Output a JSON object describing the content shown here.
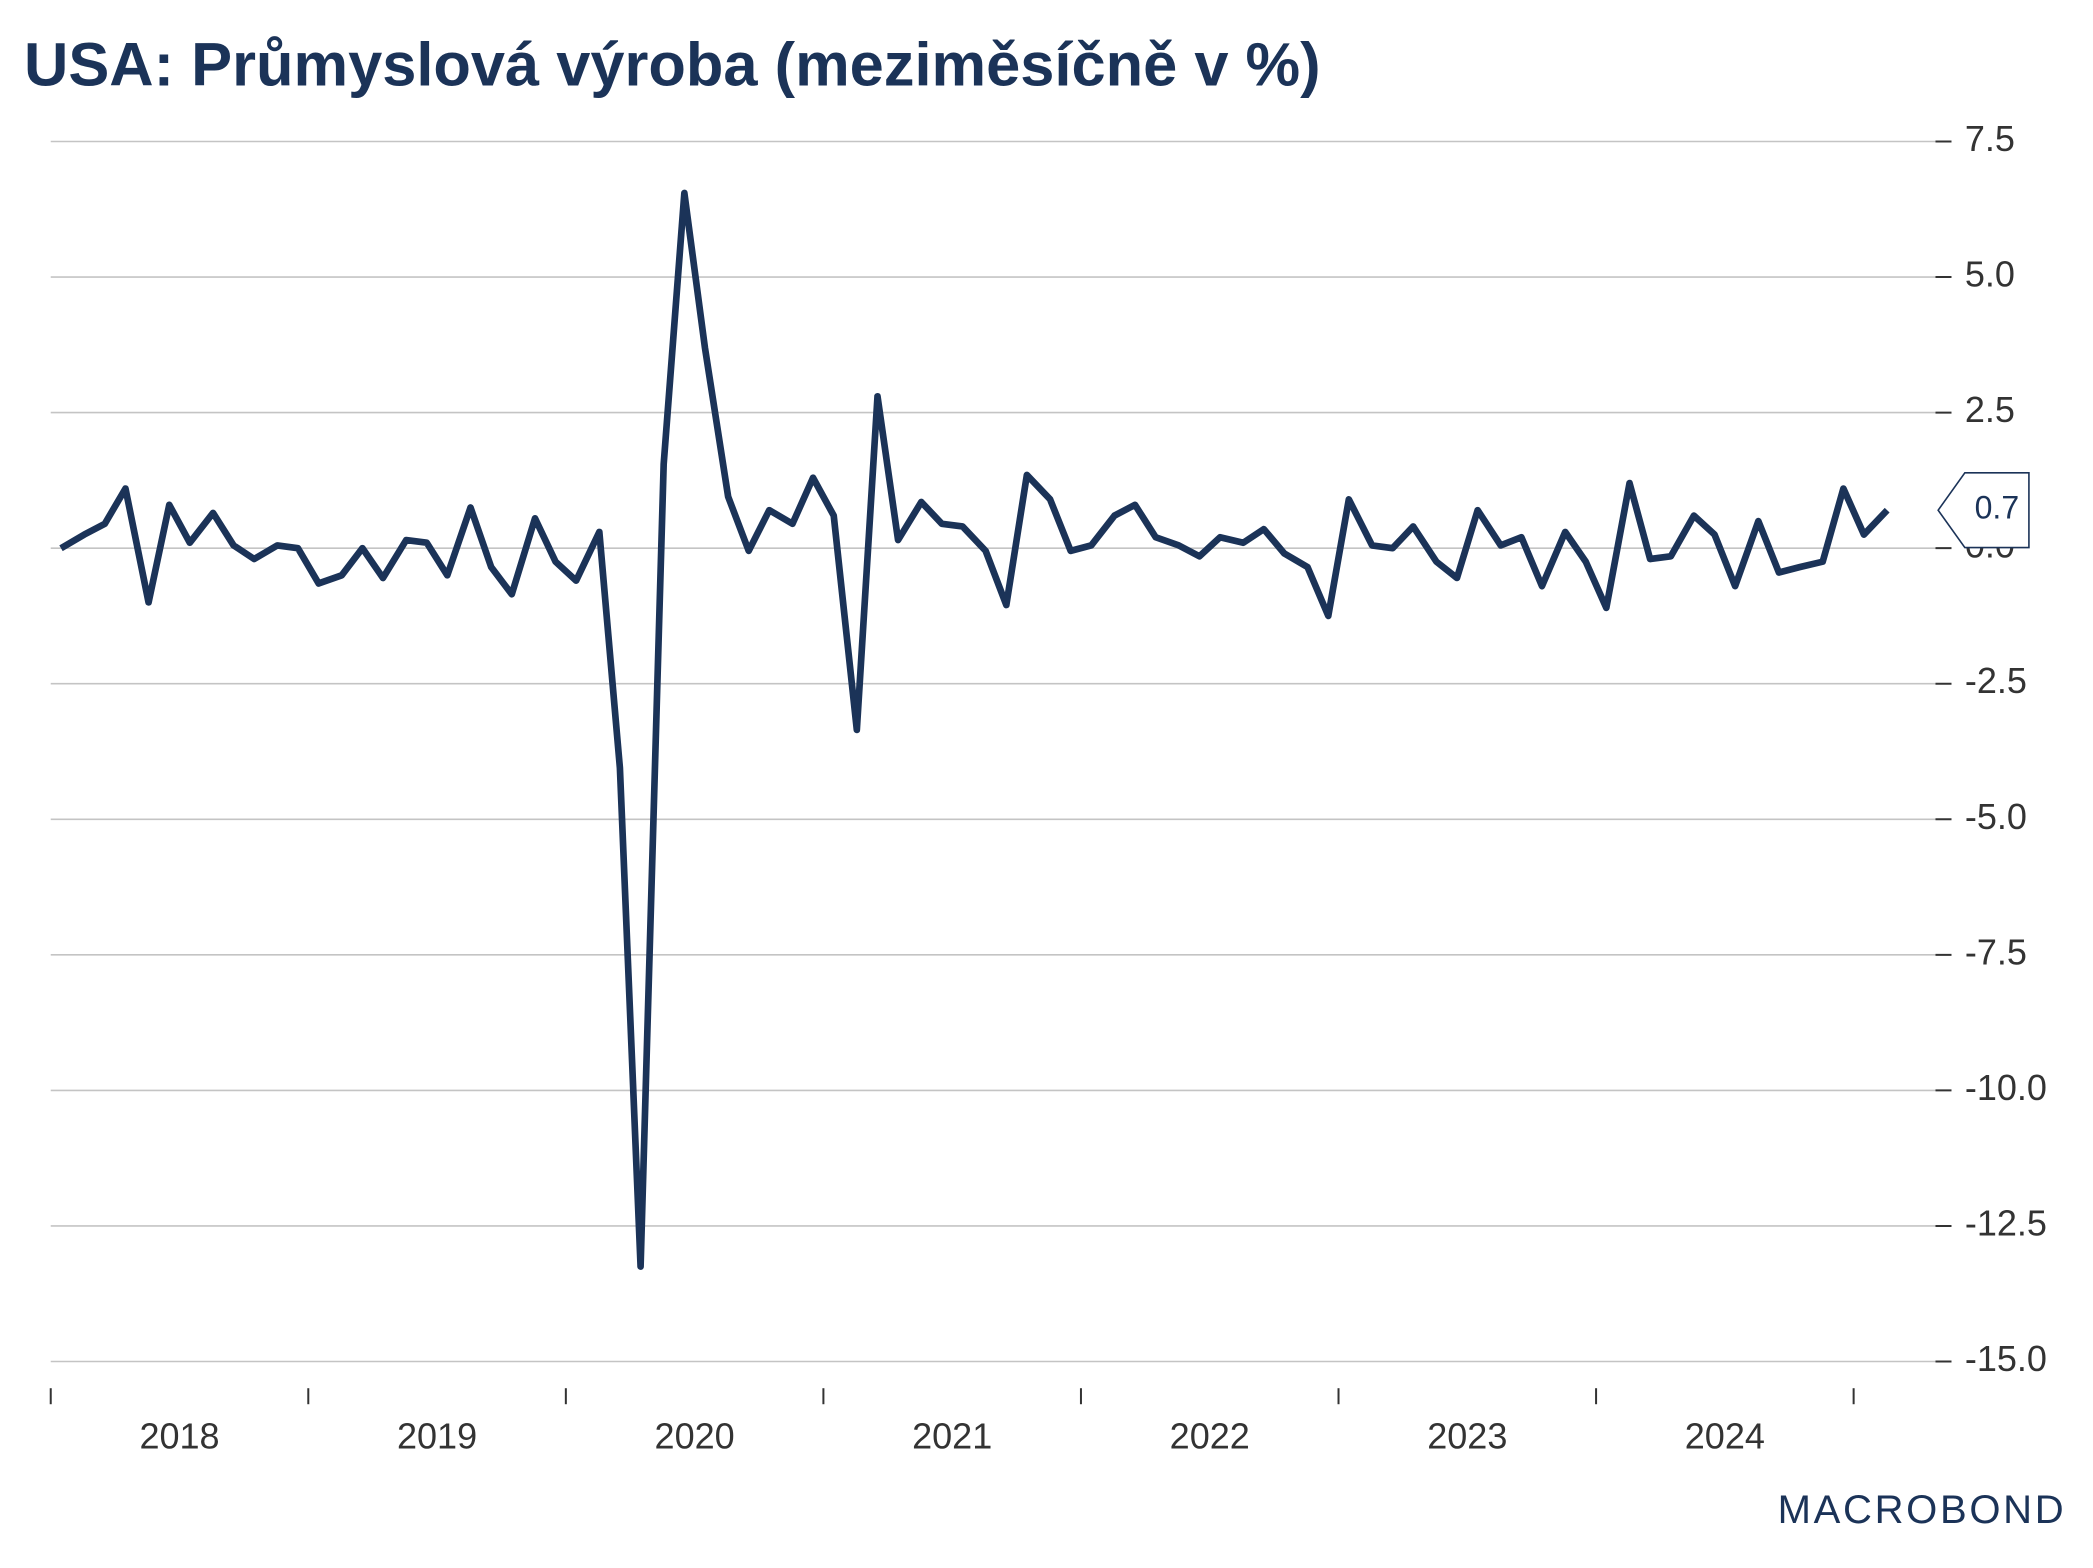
{
  "chart_data": {
    "type": "line",
    "title": "USA: Průmyslová výroba (meziměsíčně v %)",
    "logo": "MACROBOND",
    "x": [
      2018.04,
      2018.13,
      2018.21,
      2018.29,
      2018.38,
      2018.46,
      2018.54,
      2018.63,
      2018.71,
      2018.79,
      2018.88,
      2018.96,
      2019.04,
      2019.13,
      2019.21,
      2019.29,
      2019.38,
      2019.46,
      2019.54,
      2019.63,
      2019.71,
      2019.79,
      2019.88,
      2019.96,
      2020.04,
      2020.13,
      2020.21,
      2020.29,
      2020.38,
      2020.46,
      2020.54,
      2020.63,
      2020.71,
      2020.79,
      2020.88,
      2020.96,
      2021.04,
      2021.13,
      2021.21,
      2021.29,
      2021.38,
      2021.46,
      2021.54,
      2021.63,
      2021.71,
      2021.79,
      2021.88,
      2021.96,
      2022.04,
      2022.13,
      2022.21,
      2022.29,
      2022.38,
      2022.46,
      2022.54,
      2022.63,
      2022.71,
      2022.79,
      2022.88,
      2022.96,
      2023.04,
      2023.13,
      2023.21,
      2023.29,
      2023.38,
      2023.46,
      2023.54,
      2023.63,
      2023.71,
      2023.79,
      2023.88,
      2023.96,
      2024.04,
      2024.13,
      2024.21,
      2024.29,
      2024.38,
      2024.46,
      2024.54,
      2024.63,
      2024.71,
      2024.79,
      2024.88,
      2024.96,
      2025.04,
      2025.13
    ],
    "series": [
      {
        "name": "Průmyslová výroba",
        "color": "#1b3358",
        "values": [
          0.0,
          0.25,
          0.45,
          1.1,
          -1.0,
          0.8,
          0.1,
          0.65,
          0.05,
          -0.2,
          0.05,
          0.0,
          -0.65,
          -0.5,
          0.0,
          -0.55,
          0.15,
          0.1,
          -0.5,
          0.75,
          -0.35,
          -0.85,
          0.55,
          -0.25,
          -0.6,
          0.3,
          -4.05,
          -13.25,
          1.55,
          6.55,
          3.7,
          0.95,
          -0.05,
          0.7,
          0.45,
          1.3,
          0.6,
          -3.35,
          2.8,
          0.15,
          0.85,
          0.45,
          0.4,
          -0.05,
          -1.05,
          1.35,
          0.9,
          -0.05,
          0.05,
          0.6,
          0.8,
          0.2,
          0.05,
          -0.15,
          0.2,
          0.1,
          0.35,
          -0.1,
          -0.35,
          -1.25,
          0.9,
          0.05,
          0.0,
          0.4,
          -0.25,
          -0.55,
          0.7,
          0.05,
          0.2,
          -0.7,
          0.3,
          -0.25,
          -1.1,
          1.2,
          -0.2,
          -0.15,
          0.6,
          0.25,
          -0.7,
          0.5,
          -0.45,
          -0.35,
          -0.25,
          1.1,
          0.25,
          0.7
        ]
      }
    ],
    "xlim": [
      2018,
      2025.38
    ],
    "xtick_marks": [
      2018,
      2019,
      2020,
      2021,
      2022,
      2023,
      2024,
      2025
    ],
    "xticks": [
      {
        "value": 2018.5,
        "label": "2018"
      },
      {
        "value": 2019.5,
        "label": "2019"
      },
      {
        "value": 2020.5,
        "label": "2020"
      },
      {
        "value": 2021.5,
        "label": "2021"
      },
      {
        "value": 2022.5,
        "label": "2022"
      },
      {
        "value": 2023.5,
        "label": "2023"
      },
      {
        "value": 2024.5,
        "label": "2024"
      }
    ],
    "ylim": [
      -15,
      7.5
    ],
    "yticks": [
      7.5,
      {
        "value": 5,
        "label": "5.0"
      },
      2.5,
      {
        "value": 0,
        "label": "0.0"
      },
      -2.5,
      {
        "value": -5,
        "label": "-5.0"
      },
      -7.5,
      {
        "value": -10,
        "label": "-10.0"
      },
      -12.5,
      {
        "value": -15,
        "label": "-15.0"
      }
    ],
    "grid": true,
    "y_axis_side": "right",
    "last_value_label": true
  }
}
